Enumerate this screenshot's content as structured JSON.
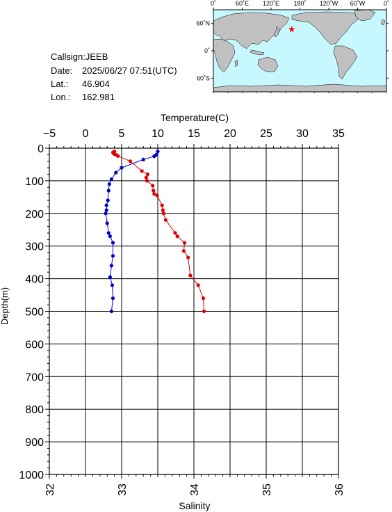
{
  "header": {
    "callsign": "Callsign:JEEB",
    "date_label": "Date:",
    "date_value": "2025/06/27 07:51(UTC)",
    "lat_label": "Lat.:",
    "lat_value": "46.904",
    "lon_label": "Lon.:",
    "lon_value": "162.981"
  },
  "map": {
    "top_labels": [
      "0˚",
      "60˚E",
      "120˚E",
      "180˚",
      "120˚W",
      "60˚W",
      "0˚"
    ],
    "lon_ticks": [
      0,
      60,
      120,
      180,
      240,
      300,
      360
    ],
    "left_labels": [
      "60˚N",
      "0˚",
      "60˚S"
    ],
    "lat_ticks": [
      60,
      0,
      -60
    ],
    "station_lon": 162.981,
    "station_lat": 46.904,
    "colors": {
      "ocean": "#c8f8ff",
      "land": "#c0c0c0",
      "coast": "#000000",
      "marker": "#ff0000"
    }
  },
  "chart_data": {
    "type": "line",
    "title": "",
    "ylabel": "Depth(m)",
    "ylim": [
      0,
      1000
    ],
    "y_inverted": true,
    "y_ticks": [
      0,
      100,
      200,
      300,
      400,
      500,
      600,
      700,
      800,
      900,
      1000
    ],
    "top_axis": {
      "label": "Temperature(C)",
      "xlim": [
        -5,
        35
      ],
      "ticks": [
        -5,
        0,
        5,
        10,
        15,
        20,
        25,
        30,
        35
      ]
    },
    "bottom_axis": {
      "label": "Salinity",
      "xlim": [
        32,
        36
      ],
      "ticks": [
        32,
        33,
        34,
        35,
        36
      ]
    },
    "grid": true,
    "series": [
      {
        "axis": "top",
        "color": "#e00000",
        "points": [
          [
            4.0,
            10
          ],
          [
            3.8,
            13
          ],
          [
            3.9,
            16
          ],
          [
            4.0,
            18
          ],
          [
            4.3,
            21
          ],
          [
            4.5,
            24
          ],
          [
            6.2,
            40
          ],
          [
            7.8,
            70
          ],
          [
            8.6,
            80
          ],
          [
            8.4,
            90
          ],
          [
            8.5,
            100
          ],
          [
            9.3,
            115
          ],
          [
            9.4,
            130
          ],
          [
            9.5,
            140
          ],
          [
            9.9,
            145
          ],
          [
            10.6,
            175
          ],
          [
            10.7,
            190
          ],
          [
            10.8,
            200
          ],
          [
            11.1,
            220
          ],
          [
            12.4,
            260
          ],
          [
            12.7,
            270
          ],
          [
            13.7,
            290
          ],
          [
            13.6,
            315
          ],
          [
            14.2,
            335
          ],
          [
            14.5,
            390
          ],
          [
            15.6,
            420
          ],
          [
            16.3,
            460
          ],
          [
            16.4,
            500
          ]
        ]
      },
      {
        "axis": "bottom",
        "color": "#0000cc",
        "points": [
          [
            33.5,
            10
          ],
          [
            33.48,
            20
          ],
          [
            33.45,
            25
          ],
          [
            33.3,
            35
          ],
          [
            33.0,
            60
          ],
          [
            32.92,
            75
          ],
          [
            32.86,
            95
          ],
          [
            32.83,
            110
          ],
          [
            32.82,
            130
          ],
          [
            32.81,
            160
          ],
          [
            32.79,
            175
          ],
          [
            32.79,
            190
          ],
          [
            32.78,
            200
          ],
          [
            32.8,
            230
          ],
          [
            32.82,
            260
          ],
          [
            32.84,
            270
          ],
          [
            32.88,
            290
          ],
          [
            32.88,
            330
          ],
          [
            32.86,
            360
          ],
          [
            32.84,
            395
          ],
          [
            32.87,
            420
          ],
          [
            32.88,
            460
          ],
          [
            32.86,
            500
          ]
        ]
      }
    ]
  }
}
